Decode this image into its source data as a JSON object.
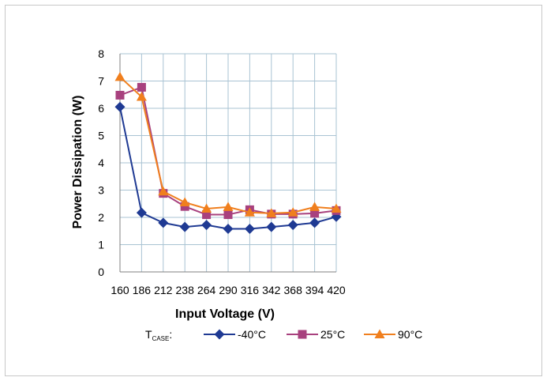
{
  "chart_data": {
    "type": "line",
    "xlabel": "Input Voltage (V)",
    "ylabel": "Power Dissipation (W)",
    "categories": [
      "160",
      "186",
      "212",
      "238",
      "264",
      "290",
      "316",
      "342",
      "368",
      "394",
      "420"
    ],
    "ylim": [
      0,
      8
    ],
    "yticks": [
      "0",
      "1",
      "2",
      "3",
      "4",
      "5",
      "6",
      "7",
      "8"
    ],
    "grid": true,
    "legend": {
      "position": "bottom",
      "prefix_main": "T",
      "prefix_sub": "CASE",
      "prefix_suffix": ":"
    },
    "series": [
      {
        "name": "-40°C",
        "color": "#1f3a93",
        "marker": "diamond",
        "values": [
          6.05,
          2.17,
          1.8,
          1.65,
          1.72,
          1.58,
          1.58,
          1.65,
          1.72,
          1.8,
          2.02
        ]
      },
      {
        "name": "25°C",
        "color": "#a8417e",
        "marker": "square",
        "values": [
          6.48,
          6.77,
          2.88,
          2.4,
          2.1,
          2.1,
          2.28,
          2.12,
          2.12,
          2.15,
          2.25
        ]
      },
      {
        "name": "90°C",
        "color": "#f07f1e",
        "marker": "triangle",
        "values": [
          7.15,
          6.42,
          2.95,
          2.55,
          2.32,
          2.38,
          2.18,
          2.15,
          2.18,
          2.38,
          2.32
        ]
      }
    ]
  }
}
